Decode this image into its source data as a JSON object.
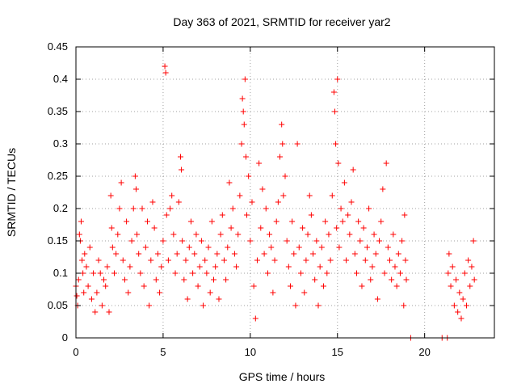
{
  "chart_data": {
    "type": "scatter",
    "title": "Day 363 of 2021, SRMTID for receiver yar2",
    "xlabel": "GPS time / hours",
    "ylabel": "SRMTID / TECUs",
    "xlim": [
      0,
      24
    ],
    "ylim": [
      0,
      0.45
    ],
    "x_ticks": [
      0,
      5,
      10,
      15,
      20
    ],
    "x_tick_labels": [
      "0",
      "5",
      "10",
      "15",
      "20"
    ],
    "y_ticks": [
      0,
      0.05,
      0.1,
      0.15,
      0.2,
      0.25,
      0.3,
      0.35,
      0.4,
      0.45
    ],
    "y_tick_labels": [
      "0",
      "0.05",
      "0.1",
      "0.15",
      "0.2",
      "0.25",
      "0.3",
      "0.35",
      "0.4",
      "0.45"
    ],
    "grid": true,
    "marker": "+",
    "color": "#ff0000",
    "series": [
      {
        "name": "SRMTID",
        "points": [
          [
            0.0,
            0.08
          ],
          [
            0.05,
            0.065
          ],
          [
            0.1,
            0.05
          ],
          [
            0.15,
            0.09
          ],
          [
            0.2,
            0.16
          ],
          [
            0.25,
            0.15
          ],
          [
            0.3,
            0.18
          ],
          [
            0.35,
            0.12
          ],
          [
            0.4,
            0.1
          ],
          [
            0.45,
            0.07
          ],
          [
            0.5,
            0.13
          ],
          [
            0.6,
            0.11
          ],
          [
            0.7,
            0.08
          ],
          [
            0.8,
            0.14
          ],
          [
            0.9,
            0.06
          ],
          [
            1.0,
            0.1
          ],
          [
            1.1,
            0.04
          ],
          [
            1.2,
            0.07
          ],
          [
            1.3,
            0.12
          ],
          [
            1.4,
            0.1
          ],
          [
            1.5,
            0.05
          ],
          [
            1.6,
            0.09
          ],
          [
            1.7,
            0.08
          ],
          [
            1.8,
            0.11
          ],
          [
            1.9,
            0.04
          ],
          [
            2.0,
            0.22
          ],
          [
            2.05,
            0.17
          ],
          [
            2.1,
            0.14
          ],
          [
            2.2,
            0.1
          ],
          [
            2.3,
            0.13
          ],
          [
            2.4,
            0.16
          ],
          [
            2.5,
            0.2
          ],
          [
            2.6,
            0.24
          ],
          [
            2.7,
            0.12
          ],
          [
            2.8,
            0.09
          ],
          [
            2.9,
            0.18
          ],
          [
            3.0,
            0.07
          ],
          [
            3.1,
            0.11
          ],
          [
            3.2,
            0.15
          ],
          [
            3.3,
            0.2
          ],
          [
            3.4,
            0.25
          ],
          [
            3.45,
            0.23
          ],
          [
            3.5,
            0.16
          ],
          [
            3.6,
            0.13
          ],
          [
            3.7,
            0.1
          ],
          [
            3.8,
            0.2
          ],
          [
            3.9,
            0.08
          ],
          [
            4.0,
            0.14
          ],
          [
            4.1,
            0.18
          ],
          [
            4.2,
            0.05
          ],
          [
            4.3,
            0.12
          ],
          [
            4.4,
            0.21
          ],
          [
            4.5,
            0.17
          ],
          [
            4.6,
            0.09
          ],
          [
            4.7,
            0.13
          ],
          [
            4.8,
            0.07
          ],
          [
            4.9,
            0.11
          ],
          [
            5.0,
            0.15
          ],
          [
            5.1,
            0.42
          ],
          [
            5.15,
            0.41
          ],
          [
            5.2,
            0.19
          ],
          [
            5.3,
            0.12
          ],
          [
            5.4,
            0.2
          ],
          [
            5.5,
            0.22
          ],
          [
            5.6,
            0.16
          ],
          [
            5.7,
            0.1
          ],
          [
            5.8,
            0.13
          ],
          [
            5.9,
            0.21
          ],
          [
            6.0,
            0.28
          ],
          [
            6.05,
            0.26
          ],
          [
            6.1,
            0.15
          ],
          [
            6.2,
            0.09
          ],
          [
            6.3,
            0.12
          ],
          [
            6.4,
            0.06
          ],
          [
            6.5,
            0.14
          ],
          [
            6.6,
            0.18
          ],
          [
            6.7,
            0.1
          ],
          [
            6.8,
            0.13
          ],
          [
            6.9,
            0.16
          ],
          [
            7.0,
            0.08
          ],
          [
            7.1,
            0.11
          ],
          [
            7.2,
            0.15
          ],
          [
            7.3,
            0.05
          ],
          [
            7.4,
            0.12
          ],
          [
            7.5,
            0.1
          ],
          [
            7.6,
            0.14
          ],
          [
            7.7,
            0.07
          ],
          [
            7.8,
            0.18
          ],
          [
            7.9,
            0.09
          ],
          [
            8.0,
            0.11
          ],
          [
            8.1,
            0.13
          ],
          [
            8.2,
            0.06
          ],
          [
            8.3,
            0.16
          ],
          [
            8.4,
            0.19
          ],
          [
            8.5,
            0.12
          ],
          [
            8.6,
            0.09
          ],
          [
            8.7,
            0.14
          ],
          [
            8.8,
            0.24
          ],
          [
            8.9,
            0.17
          ],
          [
            9.0,
            0.2
          ],
          [
            9.1,
            0.13
          ],
          [
            9.2,
            0.11
          ],
          [
            9.3,
            0.16
          ],
          [
            9.4,
            0.22
          ],
          [
            9.5,
            0.3
          ],
          [
            9.55,
            0.37
          ],
          [
            9.6,
            0.35
          ],
          [
            9.65,
            0.33
          ],
          [
            9.7,
            0.4
          ],
          [
            9.75,
            0.28
          ],
          [
            9.8,
            0.19
          ],
          [
            9.9,
            0.25
          ],
          [
            10.0,
            0.15
          ],
          [
            10.1,
            0.21
          ],
          [
            10.2,
            0.08
          ],
          [
            10.3,
            0.03
          ],
          [
            10.4,
            0.12
          ],
          [
            10.5,
            0.27
          ],
          [
            10.6,
            0.17
          ],
          [
            10.7,
            0.23
          ],
          [
            10.8,
            0.13
          ],
          [
            10.9,
            0.2
          ],
          [
            11.0,
            0.1
          ],
          [
            11.1,
            0.16
          ],
          [
            11.2,
            0.14
          ],
          [
            11.3,
            0.07
          ],
          [
            11.4,
            0.12
          ],
          [
            11.5,
            0.18
          ],
          [
            11.6,
            0.21
          ],
          [
            11.7,
            0.28
          ],
          [
            11.8,
            0.33
          ],
          [
            11.85,
            0.3
          ],
          [
            11.9,
            0.22
          ],
          [
            12.0,
            0.25
          ],
          [
            12.1,
            0.15
          ],
          [
            12.2,
            0.11
          ],
          [
            12.3,
            0.08
          ],
          [
            12.4,
            0.18
          ],
          [
            12.5,
            0.13
          ],
          [
            12.6,
            0.05
          ],
          [
            12.7,
            0.3
          ],
          [
            12.8,
            0.14
          ],
          [
            12.9,
            0.1
          ],
          [
            13.0,
            0.17
          ],
          [
            13.1,
            0.07
          ],
          [
            13.2,
            0.12
          ],
          [
            13.3,
            0.16
          ],
          [
            13.4,
            0.22
          ],
          [
            13.5,
            0.19
          ],
          [
            13.6,
            0.13
          ],
          [
            13.7,
            0.09
          ],
          [
            13.8,
            0.15
          ],
          [
            13.9,
            0.05
          ],
          [
            14.0,
            0.11
          ],
          [
            14.1,
            0.14
          ],
          [
            14.2,
            0.08
          ],
          [
            14.3,
            0.18
          ],
          [
            14.4,
            0.1
          ],
          [
            14.5,
            0.16
          ],
          [
            14.6,
            0.12
          ],
          [
            14.7,
            0.22
          ],
          [
            14.8,
            0.38
          ],
          [
            14.85,
            0.35
          ],
          [
            14.9,
            0.3
          ],
          [
            14.95,
            0.17
          ],
          [
            15.0,
            0.4
          ],
          [
            15.05,
            0.27
          ],
          [
            15.1,
            0.14
          ],
          [
            15.2,
            0.2
          ],
          [
            15.3,
            0.18
          ],
          [
            15.4,
            0.24
          ],
          [
            15.5,
            0.12
          ],
          [
            15.6,
            0.19
          ],
          [
            15.7,
            0.16
          ],
          [
            15.8,
            0.21
          ],
          [
            15.9,
            0.26
          ],
          [
            16.0,
            0.13
          ],
          [
            16.1,
            0.1
          ],
          [
            16.2,
            0.18
          ],
          [
            16.3,
            0.15
          ],
          [
            16.4,
            0.08
          ],
          [
            16.5,
            0.17
          ],
          [
            16.6,
            0.12
          ],
          [
            16.7,
            0.14
          ],
          [
            16.8,
            0.2
          ],
          [
            16.9,
            0.09
          ],
          [
            17.0,
            0.11
          ],
          [
            17.1,
            0.16
          ],
          [
            17.2,
            0.13
          ],
          [
            17.3,
            0.06
          ],
          [
            17.4,
            0.15
          ],
          [
            17.5,
            0.18
          ],
          [
            17.6,
            0.23
          ],
          [
            17.7,
            0.1
          ],
          [
            17.8,
            0.27
          ],
          [
            17.9,
            0.14
          ],
          [
            18.0,
            0.12
          ],
          [
            18.1,
            0.09
          ],
          [
            18.2,
            0.16
          ],
          [
            18.3,
            0.11
          ],
          [
            18.4,
            0.08
          ],
          [
            18.5,
            0.13
          ],
          [
            18.6,
            0.1
          ],
          [
            18.7,
            0.15
          ],
          [
            18.8,
            0.05
          ],
          [
            18.85,
            0.19
          ],
          [
            18.9,
            0.12
          ],
          [
            18.95,
            0.09
          ],
          [
            19.2,
            0.0
          ],
          [
            21.0,
            0.0
          ],
          [
            21.3,
            0.0
          ],
          [
            21.35,
            0.1
          ],
          [
            21.4,
            0.13
          ],
          [
            21.5,
            0.08
          ],
          [
            21.6,
            0.11
          ],
          [
            21.7,
            0.05
          ],
          [
            21.8,
            0.09
          ],
          [
            21.9,
            0.04
          ],
          [
            22.0,
            0.07
          ],
          [
            22.1,
            0.03
          ],
          [
            22.2,
            0.06
          ],
          [
            22.3,
            0.1
          ],
          [
            22.4,
            0.05
          ],
          [
            22.5,
            0.12
          ],
          [
            22.6,
            0.08
          ],
          [
            22.7,
            0.11
          ],
          [
            22.8,
            0.15
          ],
          [
            22.85,
            0.09
          ]
        ]
      }
    ]
  }
}
